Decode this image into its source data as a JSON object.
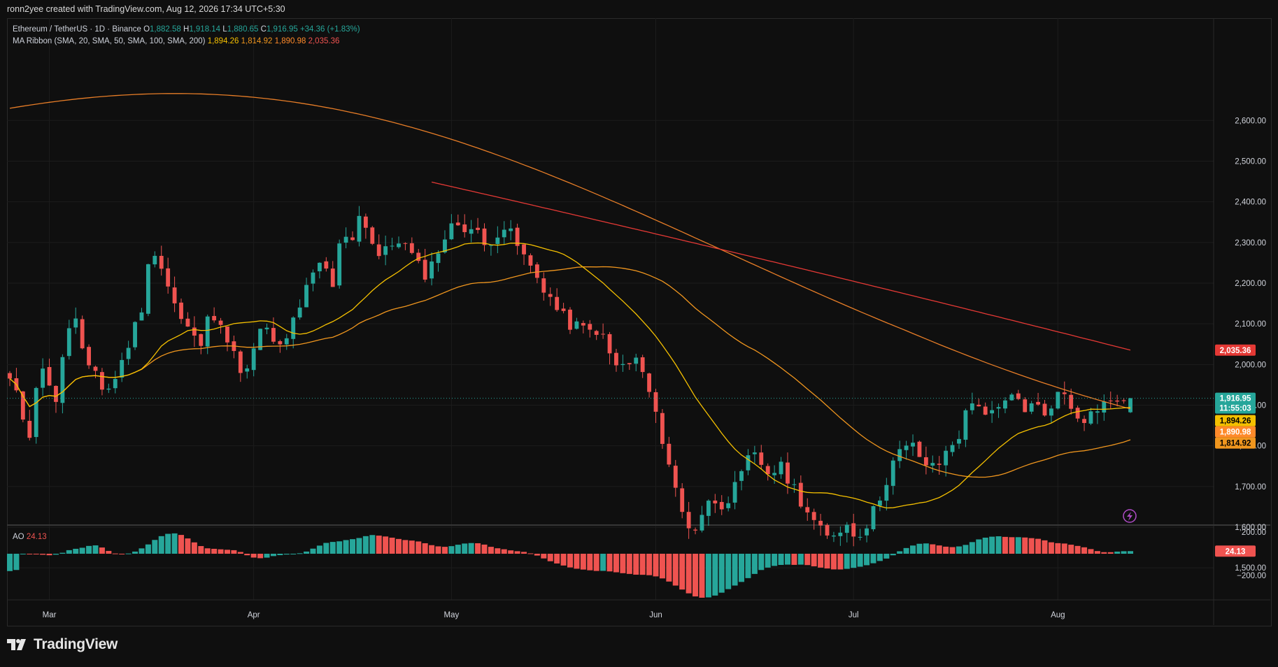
{
  "attribution": "ronn2yee created with TradingView.com, Aug 12, 2026 17:34 UTC+5:30",
  "legend": {
    "symbol": "Ethereum / TetherUS · 1D · Binance",
    "o_label": "O",
    "o_value": "1,882.58",
    "h_label": "H",
    "h_value": "1,918.14",
    "l_label": "L",
    "l_value": "1,880.65",
    "c_label": "C",
    "c_value": "1,916.95",
    "change": "+34.36 (+1.83%)",
    "ma_label": "MA Ribbon (SMA, 20, SMA, 50, SMA, 100, SMA, 200)",
    "ma_values": [
      "1,894.26",
      "1,814.92",
      "1,890.98",
      "2,035.36"
    ],
    "ao_label": "AO",
    "ao_value": "24.13"
  },
  "logo_text": "TradingView",
  "colors": {
    "up": "#26a69a",
    "down": "#ef5350",
    "sma20": "#f5c000",
    "sma50": "#f0961e",
    "sma100": "#ff8a2a",
    "sma200": "#e53935"
  },
  "chart_data": {
    "type": "candlestick",
    "price_axis": {
      "ticks": [
        1500,
        1600,
        1700,
        1800,
        1900,
        2000,
        2100,
        2200,
        2300,
        2400,
        2500,
        2600
      ],
      "tick_labels": [
        "1,500.00",
        "1,600.00",
        "1,700.00",
        "1,800.00",
        "1,900.00",
        "2,000.00",
        "2,100.00",
        "2,200.00",
        "2,300.00",
        "2,400.00",
        "2,500.00",
        "2,600.00"
      ]
    },
    "ao_axis": {
      "ticks": [
        200,
        -200
      ],
      "tick_labels": [
        "200.00",
        "−200.00"
      ]
    },
    "x_axis": {
      "labels": [
        "Mar",
        "Apr",
        "May",
        "Jun",
        "Jul",
        "Aug"
      ],
      "label_dates": [
        "2026-03-01",
        "2026-04-01",
        "2026-05-01",
        "2026-06-01",
        "2026-07-01",
        "2026-08-01"
      ]
    },
    "candle_dates": [
      "2026-02-23",
      "2026-08-12"
    ],
    "close_path": [
      1960,
      1905,
      1820,
      1990,
      1970,
      1905,
      2090,
      2110,
      1980,
      1985,
      1930,
      1960,
      2020,
      2080,
      2150,
      2300,
      2240,
      2170,
      2110,
      2080,
      2040,
      2120,
      2130,
      2050,
      2000,
      1980,
      2060,
      2100,
      2030,
      2050,
      2120,
      2170,
      2220,
      2250,
      2190,
      2330,
      2310,
      2380,
      2310,
      2260,
      2290,
      2310,
      2280,
      2240,
      2220,
      2280,
      2320,
      2350,
      2340,
      2330,
      2290,
      2320,
      2340,
      2310,
      2270,
      2230,
      2200,
      2160,
      2120,
      2100,
      2090,
      2080,
      2090,
      2030,
      1990,
      2000,
      2010,
      1960,
      1870,
      1800,
      1700,
      1620,
      1590,
      1640,
      1670,
      1660,
      1680,
      1720,
      1780,
      1760,
      1730,
      1750,
      1720,
      1680,
      1640,
      1600,
      1570,
      1590,
      1610,
      1580,
      1600,
      1640,
      1700,
      1760,
      1790,
      1800,
      1770,
      1740,
      1760,
      1800,
      1830,
      1900,
      1910,
      1870,
      1880,
      1910,
      1920,
      1890,
      1900,
      1880,
      1920,
      1930,
      1890,
      1870,
      1880,
      1910,
      1900,
      1920,
      1917
    ],
    "close": 1916.95,
    "close_label": "1,916.95",
    "countdown": "11:55:03",
    "sma20": {
      "last": 1894.26,
      "label": "1,894.26"
    },
    "sma50": {
      "last": 1814.92,
      "label": "1,814.92"
    },
    "sma100": {
      "last": 1890.98,
      "label": "1,890.98"
    },
    "sma200": {
      "last": 2035.36,
      "label": "2,035.36"
    },
    "ao_last": 24.13,
    "ao_label": "24.13"
  }
}
